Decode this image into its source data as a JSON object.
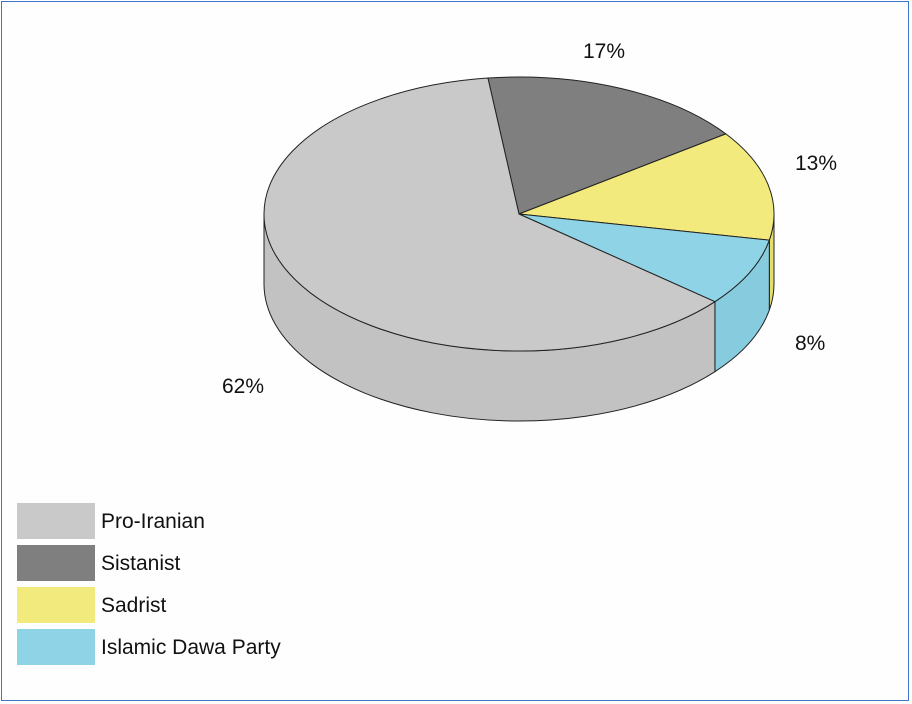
{
  "chart_data": {
    "type": "pie",
    "three_d": true,
    "slices": [
      {
        "label": "Pro-Iranian",
        "value": 62,
        "value_label": "62%",
        "color": "#c9c9c9",
        "side_color": "#c2c2c2"
      },
      {
        "label": "Sistanist",
        "value": 17,
        "value_label": "17%",
        "color": "#7f7f7f",
        "side_color": "#767676"
      },
      {
        "label": "Sadrist",
        "value": 13,
        "value_label": "13%",
        "color": "#f3ea7e",
        "side_color": "#e5dc70"
      },
      {
        "label": "Islamic Dawa Party",
        "value": 8,
        "value_label": "8%",
        "color": "#8ed3e6",
        "side_color": "#86cbde"
      }
    ],
    "legend_position": "bottom-left",
    "outline_color": "#222222"
  }
}
